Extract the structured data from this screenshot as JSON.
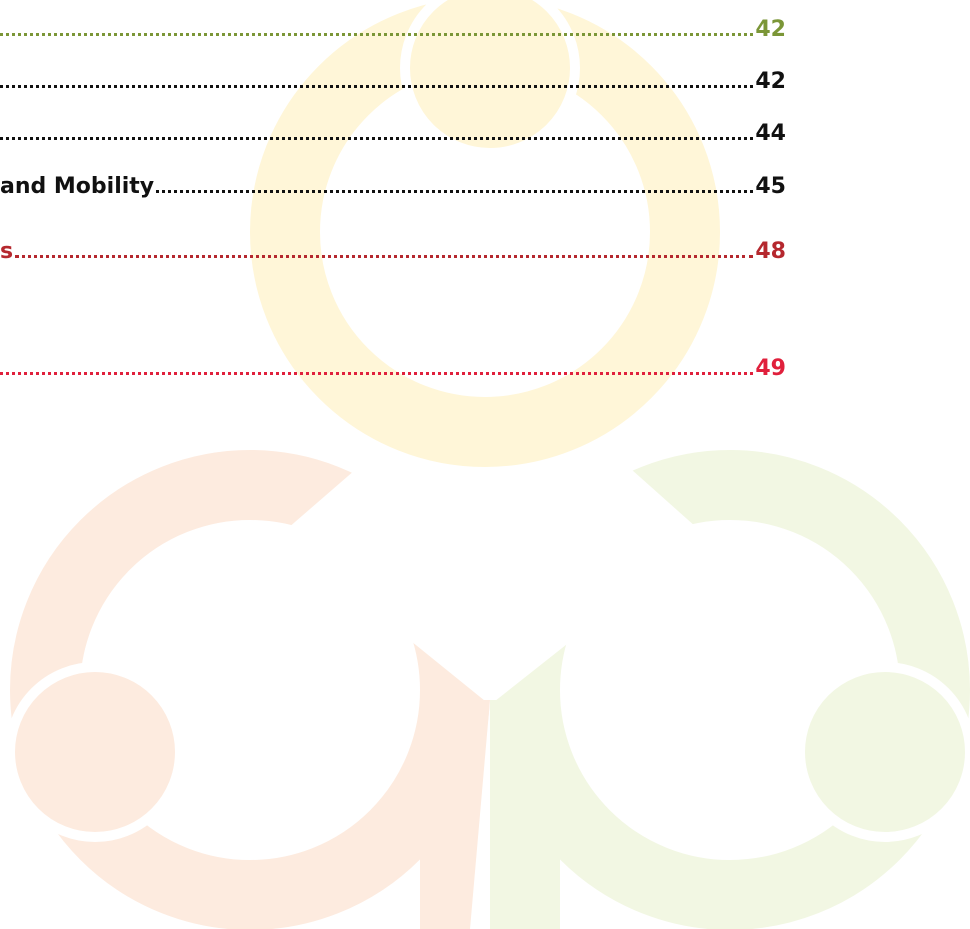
{
  "toc": {
    "entries": [
      {
        "page": "42",
        "color": "#7b9637"
      },
      {
        "page": "42",
        "color": "#111111"
      },
      {
        "page": "44",
        "color": "#111111"
      },
      {
        "label": "and Mobility",
        "page": "45",
        "color": "#111111"
      },
      {
        "label": "s",
        "page": "48",
        "color": "#b5282e"
      },
      {
        "page": "49",
        "color": "#e0203c"
      }
    ]
  }
}
